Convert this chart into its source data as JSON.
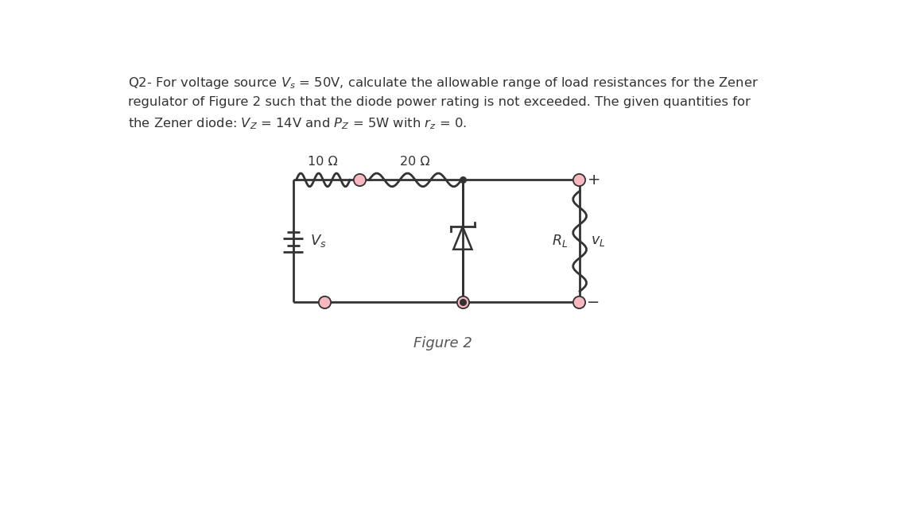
{
  "figure_caption": "Figure 2",
  "background_color": "#ffffff",
  "line_color": "#333333",
  "node_color": "#f9b8c0",
  "text_color": "#333333",
  "figure_caption_color": "#555555",
  "header_line1": "Q2- For voltage source $\\mathit{V}_s$ = 50V, calculate the allowable range of load resistances for the Zener",
  "header_line2": "regulator of Figure 2 such that the diode power rating is not exceeded. The given quantities for",
  "header_line3": "the Zener diode: $V_Z$ = 14V and $P_Z$ = 5W with $r_z$ = 0.",
  "res10_label": "10 Ω",
  "res20_label": "20 Ω",
  "vs_label": "$V_s$",
  "rl_label": "$R_L$",
  "vl_label": "$v_L$"
}
